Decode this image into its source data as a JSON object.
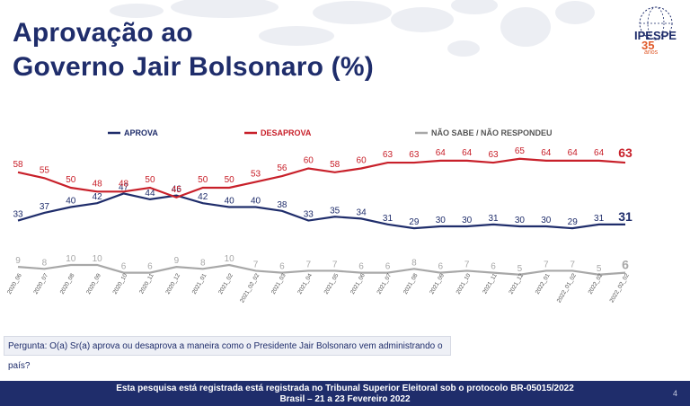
{
  "title_line1": "Aprovação ao",
  "title_line2": "Governo Jair Bolsonaro (%)",
  "logo": {
    "name": "IPESPE",
    "years": "35",
    "years_label": "anos"
  },
  "question": "Pergunta: O(a) Sr(a) aprova ou desaprova a maneira como o Presidente Jair Bolsonaro vem administrando o país?",
  "footer": {
    "line1": "Esta pesquisa está registrada está registrada no Tribunal Superior Eleitoral sob o protocolo BR-05015/2022",
    "line2": "Brasil – 21 a 23 Fevereiro 2022",
    "page": "4"
  },
  "colors": {
    "aprova": "#1f2d6b",
    "desaprova": "#c8202a",
    "nao_sabe": "#a8a8a8",
    "title": "#1f2d6b"
  },
  "chart_data": {
    "type": "line",
    "legend_position": "top",
    "grid": false,
    "x": [
      "2020_06",
      "2020_07",
      "2020_08",
      "2020_09",
      "2020_10",
      "2020_11",
      "2020_12",
      "2021_01",
      "2021_02",
      "2021_02_02",
      "2021_03",
      "2021_04",
      "2021_05",
      "2021_06",
      "2021_07",
      "2021_08",
      "2021_09",
      "2021_10",
      "2021_11",
      "2021_12",
      "2022_01",
      "2022_01_02",
      "2022_02",
      "2022_02_02"
    ],
    "series": [
      {
        "name": "APROVA",
        "values": [
          33,
          37,
          40,
          42,
          47,
          44,
          46,
          42,
          40,
          40,
          38,
          33,
          35,
          34,
          31,
          29,
          30,
          30,
          31,
          30,
          30,
          29,
          31,
          31
        ]
      },
      {
        "name": "DESAPROVA",
        "values": [
          58,
          55,
          50,
          48,
          48,
          50,
          45,
          50,
          50,
          53,
          56,
          60,
          58,
          60,
          63,
          63,
          64,
          64,
          63,
          65,
          64,
          64,
          64,
          63
        ]
      },
      {
        "name": "NÃO SABE / NÃO RESPONDEU",
        "values": [
          9,
          8,
          10,
          10,
          6,
          6,
          9,
          8,
          10,
          7,
          6,
          7,
          7,
          6,
          6,
          8,
          6,
          7,
          6,
          5,
          7,
          7,
          5,
          6
        ]
      }
    ]
  }
}
